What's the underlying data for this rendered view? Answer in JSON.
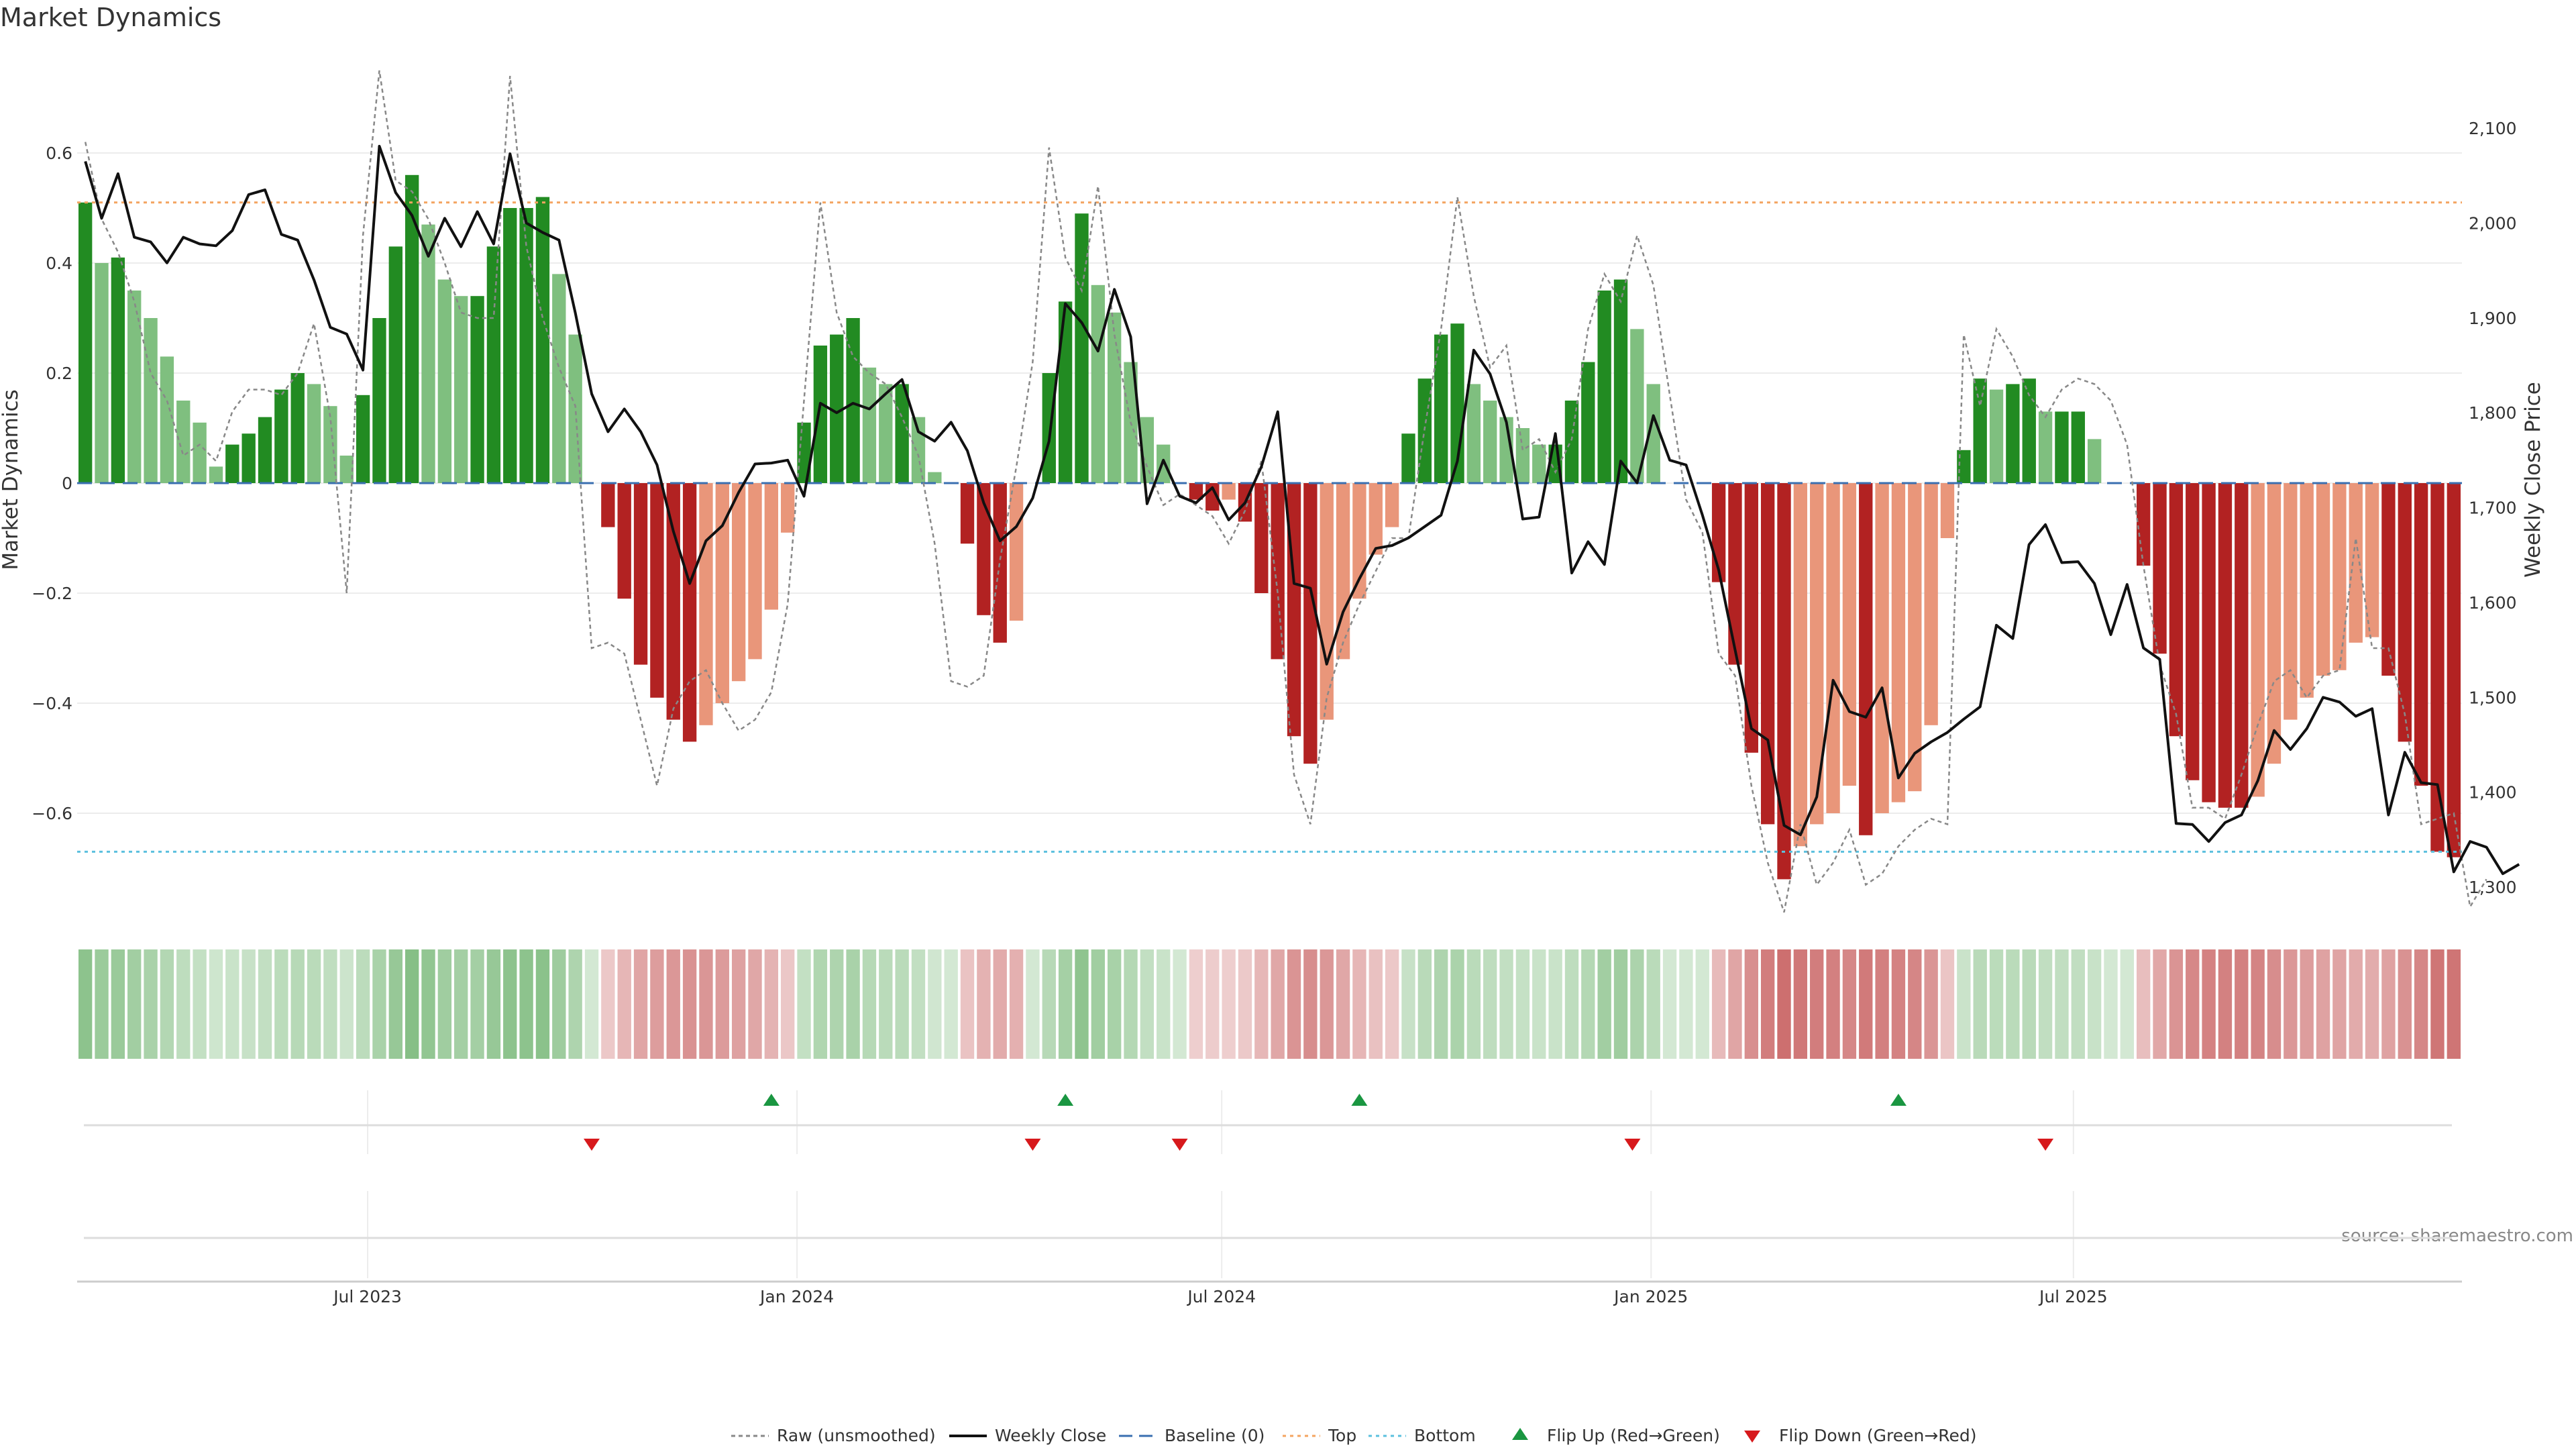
{
  "chart_data": {
    "type": "bar+line",
    "title": "Market Dynamics",
    "ylabel": "Market Dynamics",
    "y2label": "Weekly Close Price",
    "source": "source: sharemaestro.com",
    "ylim": [
      -0.78,
      0.76
    ],
    "y_ticks": [
      0.6,
      0.4,
      0.2,
      0,
      -0.2,
      -0.4,
      -0.6
    ],
    "y_tick_labels": [
      "0.6",
      "0.4",
      "0.2",
      "0",
      "−0.2",
      "−0.4",
      "−0.6"
    ],
    "y2lim": [
      1275,
      2180
    ],
    "y2_ticks": [
      2100,
      2000,
      1900,
      1800,
      1700,
      1600,
      1500,
      1400,
      1300
    ],
    "y2_tick_labels": [
      "2,100",
      "2,000",
      "1,900",
      "1,800",
      "1,700",
      "1,600",
      "1,500",
      "1,400",
      "1,300"
    ],
    "x_start": "2023-03-02",
    "x_ticks": [
      {
        "label": "Jul 2023",
        "date": "2023-07-01"
      },
      {
        "label": "Jan 2024",
        "date": "2024-01-01"
      },
      {
        "label": "Jul 2024",
        "date": "2024-07-01"
      },
      {
        "label": "Jan 2025",
        "date": "2025-01-01"
      },
      {
        "label": "Jul 2025",
        "date": "2025-07-01"
      }
    ],
    "reference_lines": {
      "baseline": 0,
      "top": 0.51,
      "bottom": -0.67
    },
    "colors": {
      "strong_green": "#228B22",
      "light_green": "#7FBF7F",
      "strong_red": "#B22222",
      "light_red": "#E9967A",
      "weekly_close": "#111111",
      "raw": "#888888",
      "baseline": "#3A6FB0",
      "top": "#F4A460",
      "bottom": "#5BC0DE",
      "flip_up": "#1A9641",
      "flip_down": "#D7191C"
    },
    "legend": [
      {
        "label": "Raw (unsmoothed)",
        "key": "raw"
      },
      {
        "label": "Weekly Close",
        "key": "close"
      },
      {
        "label": "Baseline (0)",
        "key": "baseline"
      },
      {
        "label": "Top",
        "key": "top"
      },
      {
        "label": "Bottom",
        "key": "bottom"
      },
      {
        "label": "Flip Up (Red→Green)",
        "key": "flip_up"
      },
      {
        "label": "Flip Down (Green→Red)",
        "key": "flip_down"
      }
    ],
    "series": [
      {
        "name": "Market Dynamics",
        "values": [
          0.51,
          0.4,
          0.41,
          0.35,
          0.3,
          0.23,
          0.15,
          0.11,
          0.03,
          0.07,
          0.09,
          0.12,
          0.17,
          0.2,
          0.18,
          0.14,
          0.05,
          0.16,
          0.3,
          0.43,
          0.56,
          0.47,
          0.37,
          0.34,
          0.34,
          0.43,
          0.5,
          0.5,
          0.52,
          0.38,
          0.27,
          0.0,
          -0.08,
          -0.21,
          -0.33,
          -0.39,
          -0.43,
          -0.47,
          -0.44,
          -0.4,
          -0.36,
          -0.32,
          -0.23,
          -0.09,
          0.11,
          0.25,
          0.27,
          0.3,
          0.21,
          0.18,
          0.18,
          0.12,
          0.02,
          0.0,
          -0.11,
          -0.24,
          -0.29,
          -0.25,
          0.0,
          0.2,
          0.33,
          0.49,
          0.36,
          0.31,
          0.22,
          0.12,
          0.07,
          0.0,
          -0.03,
          -0.05,
          -0.03,
          -0.07,
          -0.2,
          -0.32,
          -0.46,
          -0.51,
          -0.43,
          -0.32,
          -0.21,
          -0.13,
          -0.08,
          0.09,
          0.19,
          0.27,
          0.29,
          0.18,
          0.15,
          0.12,
          0.1,
          0.07,
          0.07,
          0.15,
          0.22,
          0.35,
          0.37,
          0.28,
          0.18,
          0.0,
          0.0,
          0.0,
          -0.18,
          -0.33,
          -0.49,
          -0.62,
          -0.72,
          -0.66,
          -0.62,
          -0.6,
          -0.55,
          -0.64,
          -0.6,
          -0.58,
          -0.56,
          -0.44,
          -0.1,
          0.06,
          0.19,
          0.17,
          0.18,
          0.19,
          0.13,
          0.13,
          0.13,
          0.08,
          0.0,
          0.0,
          -0.15,
          -0.31,
          -0.46,
          -0.54,
          -0.58,
          -0.59,
          -0.59,
          -0.57,
          -0.51,
          -0.43,
          -0.39,
          -0.35,
          -0.34,
          -0.29,
          -0.28,
          -0.35,
          -0.47,
          -0.55,
          -0.67,
          -0.68
        ]
      },
      {
        "name": "Weekly Close",
        "values": [
          2065,
          2005,
          2052,
          1985,
          1980,
          1958,
          1985,
          1978,
          1976,
          1992,
          2030,
          2035,
          1988,
          1982,
          1940,
          1890,
          1883,
          1845,
          2081,
          2032,
          2008,
          1965,
          2005,
          1975,
          2012,
          1978,
          2073,
          2000,
          1990,
          1982,
          1905,
          1820,
          1780,
          1804,
          1780,
          1745,
          1675,
          1620,
          1665,
          1681,
          1716,
          1746,
          1747,
          1750,
          1712,
          1810,
          1800,
          1810,
          1804,
          1820,
          1835,
          1780,
          1770,
          1790,
          1760,
          1705,
          1665,
          1680,
          1710,
          1770,
          1915,
          1895,
          1865,
          1930,
          1880,
          1704,
          1750,
          1712,
          1705,
          1721,
          1687,
          1705,
          1743,
          1801,
          1620,
          1615,
          1535,
          1590,
          1625,
          1657,
          1660,
          1668,
          1680,
          1692,
          1749,
          1866,
          1841,
          1790,
          1688,
          1690,
          1778,
          1631,
          1664,
          1640,
          1749,
          1726,
          1797,
          1750,
          1745,
          1692,
          1634,
          1550,
          1467,
          1455,
          1365,
          1355,
          1395,
          1518,
          1485,
          1479,
          1510,
          1415,
          1441,
          1453,
          1463,
          1477,
          1490,
          1576,
          1562,
          1661,
          1682,
          1642,
          1643,
          1620,
          1566,
          1619,
          1552,
          1540,
          1367,
          1366,
          1348,
          1368,
          1376,
          1412,
          1465,
          1445,
          1467,
          1500,
          1495,
          1480,
          1488,
          1376,
          1442,
          1410,
          1408,
          1316,
          1348,
          1342,
          1314,
          1324
        ]
      },
      {
        "name": "Raw (unsmoothed)",
        "values": [
          0.62,
          0.48,
          0.42,
          0.33,
          0.2,
          0.15,
          0.05,
          0.07,
          0.04,
          0.13,
          0.17,
          0.17,
          0.16,
          0.2,
          0.29,
          0.12,
          -0.2,
          0.45,
          0.75,
          0.55,
          0.53,
          0.48,
          0.4,
          0.31,
          0.3,
          0.3,
          0.74,
          0.43,
          0.3,
          0.21,
          0.14,
          -0.3,
          -0.29,
          -0.31,
          -0.43,
          -0.55,
          -0.41,
          -0.36,
          -0.34,
          -0.4,
          -0.45,
          -0.43,
          -0.38,
          -0.22,
          0.15,
          0.51,
          0.31,
          0.23,
          0.2,
          0.18,
          0.12,
          0.05,
          -0.11,
          -0.36,
          -0.37,
          -0.35,
          -0.14,
          0.03,
          0.22,
          0.61,
          0.41,
          0.35,
          0.54,
          0.27,
          0.11,
          0.03,
          -0.04,
          -0.02,
          -0.04,
          -0.06,
          -0.11,
          -0.05,
          0.04,
          -0.2,
          -0.53,
          -0.62,
          -0.39,
          -0.29,
          -0.22,
          -0.16,
          -0.1,
          -0.1,
          0.1,
          0.28,
          0.52,
          0.34,
          0.21,
          0.25,
          0.06,
          0.08,
          0.02,
          0.08,
          0.28,
          0.38,
          0.33,
          0.45,
          0.36,
          0.16,
          -0.03,
          -0.09,
          -0.31,
          -0.35,
          -0.55,
          -0.69,
          -0.78,
          -0.62,
          -0.73,
          -0.69,
          -0.63,
          -0.73,
          -0.71,
          -0.66,
          -0.63,
          -0.61,
          -0.62,
          0.27,
          0.14,
          0.28,
          0.23,
          0.16,
          0.12,
          0.17,
          0.19,
          0.18,
          0.15,
          0.07,
          -0.15,
          -0.33,
          -0.42,
          -0.59,
          -0.59,
          -0.61,
          -0.53,
          -0.44,
          -0.36,
          -0.34,
          -0.39,
          -0.35,
          -0.34,
          -0.1,
          -0.3,
          -0.3,
          -0.42,
          -0.62,
          -0.61,
          -0.6,
          -0.77,
          -0.72
        ]
      },
      {
        "name": "Flip Up (Red→Green)",
        "dates": [
          "2023-12-21",
          "2024-04-25",
          "2024-08-29",
          "2025-04-17"
        ]
      },
      {
        "name": "Flip Down (Green→Red)",
        "dates": [
          "2023-10-05",
          "2024-04-11",
          "2024-06-13",
          "2024-12-24",
          "2025-06-19"
        ]
      }
    ]
  }
}
